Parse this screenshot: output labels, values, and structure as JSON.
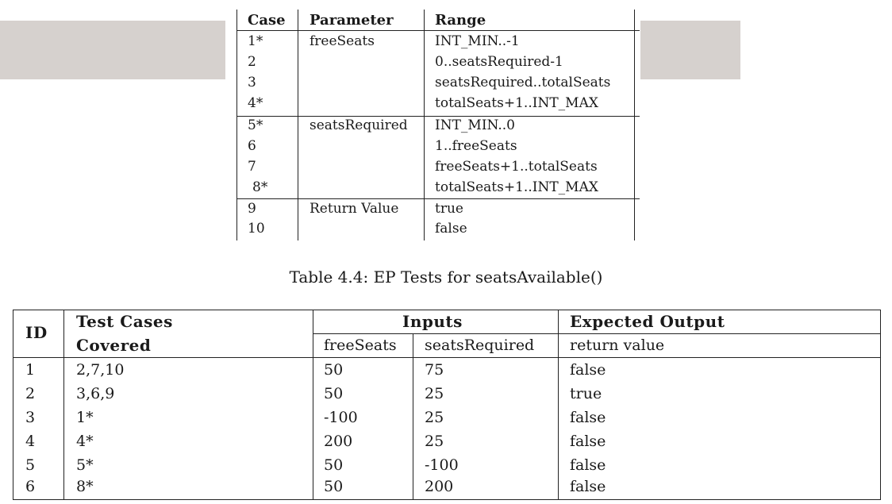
{
  "ep_table": {
    "headers": [
      "Case",
      "Parameter",
      "Range"
    ],
    "rows": [
      {
        "case": "1*",
        "parameter": "freeSeats",
        "range": "INT_MIN..-1"
      },
      {
        "case": "2",
        "parameter": "",
        "range": "0..seatsRequired-1"
      },
      {
        "case": "3",
        "parameter": "",
        "range": "seatsRequired..totalSeats"
      },
      {
        "case": "4*",
        "parameter": "",
        "range": "totalSeats+1..INT_MAX"
      },
      {
        "case": "5*",
        "parameter": "seatsRequired",
        "range": "INT_MIN..0"
      },
      {
        "case": "6",
        "parameter": "",
        "range": "1..freeSeats"
      },
      {
        "case": "7",
        "parameter": "",
        "range": "freeSeats+1..totalSeats"
      },
      {
        "case": "8*",
        "parameter": "",
        "range": "totalSeats+1..INT_MAX"
      },
      {
        "case": "9",
        "parameter": "Return Value",
        "range": "true"
      },
      {
        "case": "10",
        "parameter": "",
        "range": "false"
      }
    ]
  },
  "caption": "Table 4.4: EP Tests for seatsAvailable()",
  "test_table": {
    "headers": {
      "id": "ID",
      "test_cases_line1": "Test Cases",
      "test_cases_line2": "Covered",
      "inputs": "Inputs",
      "expected_output": "Expected Output",
      "free_seats": "freeSeats",
      "seats_required": "seatsRequired",
      "return_value": "return value"
    },
    "rows": [
      {
        "id": "1",
        "cases": "2,7,10",
        "free_seats": "50",
        "seats_required": "75",
        "output": "false"
      },
      {
        "id": "2",
        "cases": "3,6,9",
        "free_seats": "50",
        "seats_required": "25",
        "output": "true"
      },
      {
        "id": "3",
        "cases": "1*",
        "free_seats": "-100",
        "seats_required": "25",
        "output": "false"
      },
      {
        "id": "4",
        "cases": "4*",
        "free_seats": "200",
        "seats_required": "25",
        "output": "false"
      },
      {
        "id": "5",
        "cases": "5*",
        "free_seats": "50",
        "seats_required": "-100",
        "output": "false"
      },
      {
        "id": "6",
        "cases": "8*",
        "free_seats": "50",
        "seats_required": "200",
        "output": "false"
      }
    ]
  }
}
